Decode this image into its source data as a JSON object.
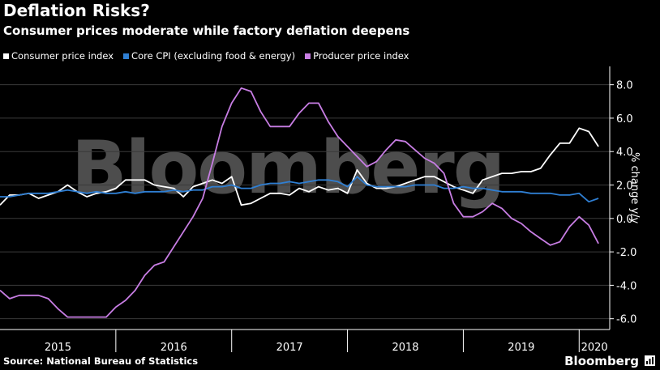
{
  "header": {
    "title": "Deflation Risks?",
    "subtitle": "Consumer prices moderate while factory deflation deepens"
  },
  "footer": {
    "source": "Source: National Bureau of Statistics",
    "brand": "Bloomberg"
  },
  "watermark": "Bloomberg",
  "colors": {
    "background": "#000000",
    "cpi": "#ffffff",
    "core": "#2f7fd3",
    "ppi": "#c77de3",
    "grid": "#3a3a3a"
  },
  "chart_data": {
    "type": "line",
    "title": "Deflation Risks?",
    "subtitle": "Consumer prices moderate while factory deflation deepens",
    "ylabel": "% change y/y",
    "ylim": [
      -6.5,
      9.0
    ],
    "yticks": [
      "8.0",
      "6.0",
      "4.0",
      "2.0",
      "0.0",
      "-2.0",
      "-4.0",
      "-6.0"
    ],
    "ytick_values": [
      8,
      6,
      4,
      2,
      0,
      -2,
      -4,
      -6
    ],
    "x_start": "2015-01",
    "x_end": "2020-04",
    "year_labels": [
      "2015",
      "2016",
      "2017",
      "2018",
      "2019",
      "2020"
    ],
    "grid": "horizontal",
    "legend_position": "top-left",
    "series": [
      {
        "name": "Consumer price index",
        "color": "#ffffff",
        "start": "2015-01",
        "values": [
          0.8,
          1.4,
          1.4,
          1.5,
          1.2,
          1.4,
          1.6,
          2.0,
          1.6,
          1.3,
          1.5,
          1.6,
          1.8,
          2.3,
          2.3,
          2.3,
          2.0,
          1.9,
          1.8,
          1.3,
          1.9,
          2.1,
          2.3,
          2.1,
          2.5,
          0.8,
          0.9,
          1.2,
          1.5,
          1.5,
          1.4,
          1.8,
          1.6,
          1.9,
          1.7,
          1.8,
          1.5,
          2.9,
          2.1,
          1.8,
          1.8,
          1.9,
          2.1,
          2.3,
          2.5,
          2.5,
          2.2,
          1.9,
          1.7,
          1.5,
          2.3,
          2.5,
          2.7,
          2.7,
          2.8,
          2.8,
          3.0,
          3.8,
          4.5,
          4.5,
          5.4,
          5.2,
          4.3
        ]
      },
      {
        "name": "Core CPI (excluding food & energy)",
        "color": "#2f7fd3",
        "start": "2015-01",
        "values": [
          1.3,
          1.3,
          1.4,
          1.5,
          1.5,
          1.5,
          1.6,
          1.7,
          1.6,
          1.5,
          1.6,
          1.5,
          1.5,
          1.6,
          1.5,
          1.6,
          1.6,
          1.6,
          1.7,
          1.6,
          1.7,
          1.7,
          1.9,
          1.9,
          2.0,
          1.8,
          1.8,
          2.0,
          2.1,
          2.1,
          2.2,
          2.1,
          2.2,
          2.3,
          2.3,
          2.2,
          1.9,
          2.5,
          2.0,
          1.9,
          1.9,
          1.9,
          1.9,
          2.0,
          2.0,
          2.0,
          1.8,
          1.8,
          1.9,
          1.8,
          1.8,
          1.7,
          1.6,
          1.6,
          1.6,
          1.5,
          1.5,
          1.5,
          1.4,
          1.4,
          1.5,
          1.0,
          1.2
        ]
      },
      {
        "name": "Producer price index",
        "color": "#c77de3",
        "start": "2015-01",
        "values": [
          -4.3,
          -4.8,
          -4.6,
          -4.6,
          -4.6,
          -4.8,
          -5.4,
          -5.9,
          -5.9,
          -5.9,
          -5.9,
          -5.9,
          -5.3,
          -4.9,
          -4.3,
          -3.4,
          -2.8,
          -2.6,
          -1.7,
          -0.8,
          0.1,
          1.2,
          3.3,
          5.5,
          6.9,
          7.8,
          7.6,
          6.4,
          5.5,
          5.5,
          5.5,
          6.3,
          6.9,
          6.9,
          5.8,
          4.9,
          4.3,
          3.7,
          3.1,
          3.4,
          4.1,
          4.7,
          4.6,
          4.1,
          3.6,
          3.3,
          2.7,
          0.9,
          0.1,
          0.1,
          0.4,
          0.9,
          0.6,
          0.0,
          -0.3,
          -0.8,
          -1.2,
          -1.6,
          -1.4,
          -0.5,
          0.1,
          -0.4,
          -1.5
        ]
      }
    ]
  }
}
